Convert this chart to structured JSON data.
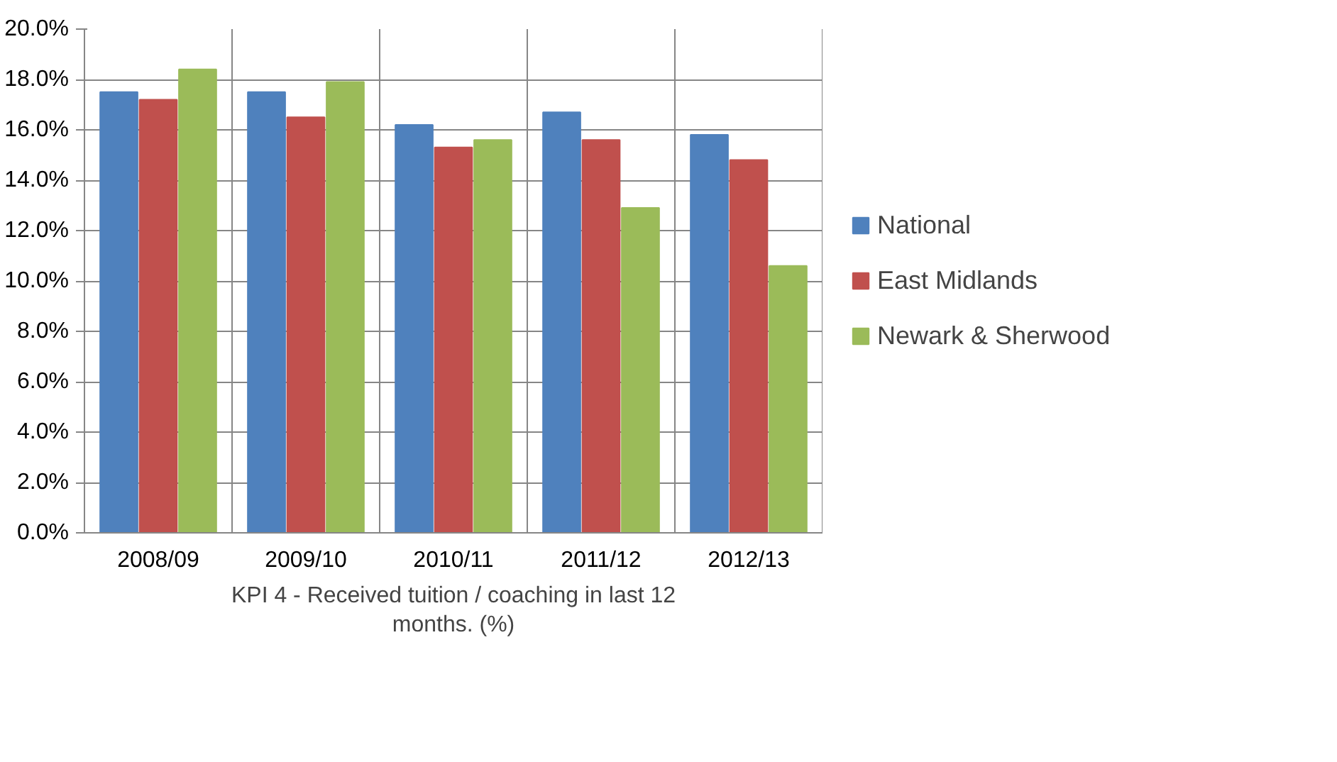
{
  "chart_data": {
    "type": "bar",
    "xlabel": "KPI 4 - Received tuition / coaching in last 12 months. (%)",
    "categories": [
      "2008/09",
      "2009/10",
      "2010/11",
      "2011/12",
      "2012/13"
    ],
    "series": [
      {
        "name": "National",
        "color": "#4f81bd",
        "values": [
          17.5,
          17.5,
          16.2,
          16.7,
          15.8
        ]
      },
      {
        "name": "East Midlands",
        "color": "#c0504d",
        "values": [
          17.2,
          16.5,
          15.3,
          15.6,
          14.8
        ]
      },
      {
        "name": "Newark & Sherwood",
        "color": "#9bbb59",
        "values": [
          18.4,
          17.9,
          15.6,
          12.9,
          10.6
        ]
      }
    ],
    "ylim": [
      0,
      20
    ],
    "yticks": [
      {
        "value": 0,
        "label": "0.0%"
      },
      {
        "value": 2,
        "label": "2.0%"
      },
      {
        "value": 4,
        "label": "4.0%"
      },
      {
        "value": 6,
        "label": "6.0%"
      },
      {
        "value": 8,
        "label": "8.0%"
      },
      {
        "value": 10,
        "label": "10.0%"
      },
      {
        "value": 12,
        "label": "12.0%"
      },
      {
        "value": 14,
        "label": "14.0%"
      },
      {
        "value": 16,
        "label": "16.0%"
      },
      {
        "value": 18,
        "label": "18.0%"
      },
      {
        "value": 20,
        "label": "20.0%"
      }
    ],
    "grid": "y",
    "legend": "right"
  }
}
